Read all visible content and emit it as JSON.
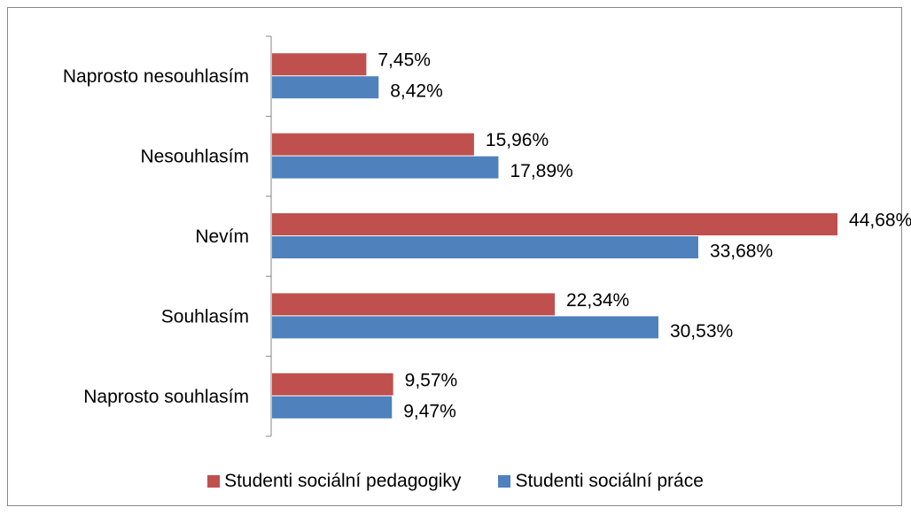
{
  "chart_data": {
    "type": "bar",
    "orientation": "horizontal",
    "categories": [
      "Naprosto nesouhlasím",
      "Nesouhlasím",
      "Nevím",
      "Souhlasím",
      "Naprosto souhlasím"
    ],
    "series": [
      {
        "name": "Studenti sociální pedagogiky",
        "color": "#C0504D",
        "values": [
          7.45,
          15.96,
          44.68,
          22.34,
          9.57
        ],
        "labels": [
          "7,45%",
          "15,96%",
          "44,68%",
          "22,34%",
          "9,57%"
        ]
      },
      {
        "name": "Studenti sociální práce",
        "color": "#4F81BD",
        "values": [
          8.42,
          17.89,
          33.68,
          30.53,
          9.47
        ],
        "labels": [
          "8,42%",
          "17,89%",
          "33,68%",
          "30,53%",
          "9,47%"
        ]
      }
    ],
    "xlim": [
      0,
      50
    ],
    "legend_position": "bottom",
    "grid": false
  }
}
